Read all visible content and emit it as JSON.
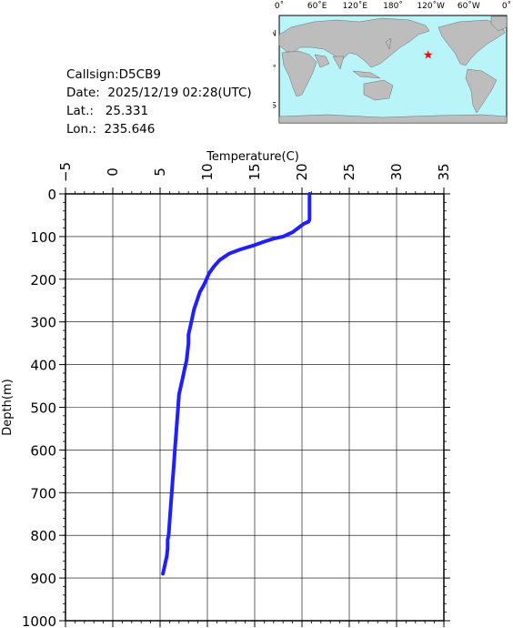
{
  "header": {
    "callsign": "Callsign:D5CB9",
    "date": "Date:  2025/12/19 02:28(UTC)",
    "lat": "Lat.:   25.331",
    "lon": "Lon.:  235.646"
  },
  "map": {
    "lon_labels": [
      "0˚",
      "60˚E",
      "120˚E",
      "180˚",
      "120˚W",
      "60˚W",
      "0˚"
    ],
    "lat_labels": [
      "60˚N",
      "0˚",
      "60˚S"
    ],
    "ocean_color": "#b8f4f8",
    "land_color": "#bdbdbd",
    "marker_icon": "red-star",
    "marker_color": "#ff0000",
    "marker": {
      "lon": 235.646,
      "lat": 25.331
    }
  },
  "chart_data": {
    "type": "line",
    "title": "",
    "xlabel": "Temperature(C)",
    "ylabel": "Depth(m)",
    "xlim": [
      -5,
      35
    ],
    "ylim": [
      0,
      1000
    ],
    "y_inverted": true,
    "x_axis_position": "top",
    "grid": true,
    "xticks": [
      -5,
      0,
      5,
      10,
      15,
      20,
      25,
      30,
      35
    ],
    "yticks": [
      0,
      100,
      200,
      300,
      400,
      500,
      600,
      700,
      800,
      900,
      1000
    ],
    "line_color": "#1f1fff",
    "series": [
      {
        "temperature": [
          20.8,
          20.8,
          20.8,
          20.7,
          20.2,
          19.6,
          19.0,
          18.0,
          17.0,
          16.0,
          15.0,
          13.5,
          12.3,
          11.3,
          10.7,
          10.2,
          9.9,
          9.6,
          9.2,
          8.9,
          8.6,
          8.4,
          8.2,
          8.0,
          8.0,
          7.9,
          7.8,
          7.6,
          7.4,
          7.2,
          7.0,
          6.9,
          6.8,
          6.7,
          6.6,
          6.5,
          6.4,
          6.3,
          6.2,
          6.1,
          6.0,
          5.9,
          5.8,
          5.8,
          5.7,
          5.6,
          5.5,
          5.4,
          5.3
        ],
        "depth": [
          0,
          30,
          60,
          65,
          70,
          80,
          90,
          100,
          105,
          112,
          120,
          130,
          140,
          155,
          170,
          185,
          200,
          215,
          230,
          250,
          270,
          290,
          310,
          330,
          350,
          370,
          390,
          410,
          430,
          450,
          470,
          500,
          530,
          560,
          590,
          620,
          650,
          680,
          710,
          740,
          770,
          800,
          810,
          830,
          850,
          860,
          870,
          880,
          890
        ]
      }
    ]
  }
}
